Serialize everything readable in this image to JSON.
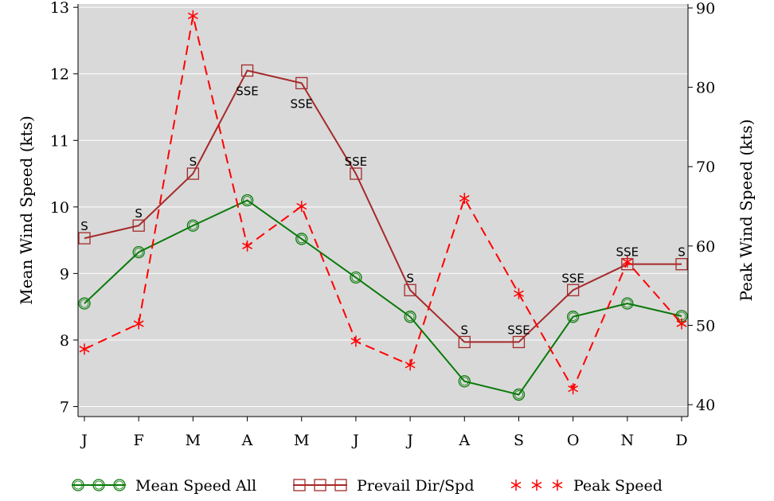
{
  "chart_data": {
    "type": "line",
    "categories": [
      "J",
      "F",
      "M",
      "A",
      "M",
      "J",
      "J",
      "A",
      "S",
      "O",
      "N",
      "D"
    ],
    "ylabel_left": "Mean Wind Speed (kts)",
    "ylabel_right": "Peak Wind Speed (kts)",
    "ylim_left": [
      6.85,
      13.05
    ],
    "ylim_right": [
      38.5,
      90.5
    ],
    "yticks_left": [
      7,
      8,
      9,
      10,
      11,
      12,
      13
    ],
    "yticks_right": [
      40,
      50,
      60,
      70,
      80,
      90
    ],
    "grid": true,
    "legend_position": "bottom",
    "background": "#d9d9d9",
    "series": [
      {
        "name": "Mean Speed All",
        "axis": "left",
        "color": "#0a7a0a",
        "marker": "circle",
        "line_style": "solid",
        "values": [
          8.55,
          9.32,
          9.72,
          10.1,
          9.52,
          8.94,
          8.35,
          7.38,
          7.18,
          8.35,
          8.55,
          8.36
        ]
      },
      {
        "name": "Prevail Dir/Spd",
        "axis": "left",
        "color": "#a52a2a",
        "marker": "square",
        "line_style": "solid",
        "values": [
          9.53,
          9.72,
          10.5,
          12.05,
          11.86,
          10.5,
          8.75,
          7.97,
          7.97,
          8.75,
          9.14,
          9.14
        ],
        "labels": [
          "S",
          "S",
          "S",
          "SSE",
          "SSE",
          "SSE",
          "S",
          "S",
          "SSE",
          "SSE",
          "SSE",
          "S"
        ],
        "label_position": [
          "above",
          "above",
          "above",
          "below",
          "below",
          "above",
          "above",
          "above",
          "above",
          "above",
          "above",
          "above"
        ]
      },
      {
        "name": "Peak Speed",
        "axis": "right",
        "color": "#ff0000",
        "marker": "asterisk",
        "line_style": "dashed",
        "values": [
          47,
          50.2,
          89,
          60,
          65,
          48,
          45,
          66,
          54,
          42,
          58,
          50.2
        ]
      }
    ]
  }
}
